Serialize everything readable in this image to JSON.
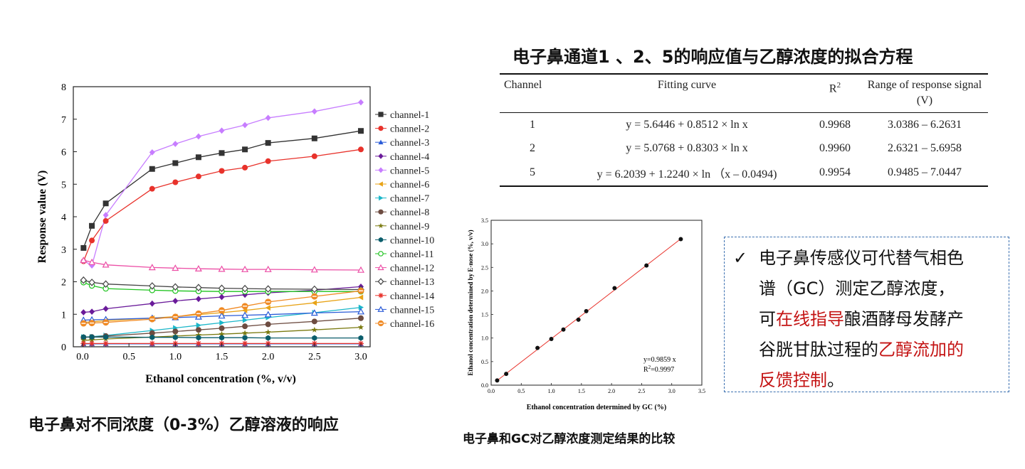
{
  "chart_data": [
    {
      "type": "scatter",
      "title": "",
      "xlabel": "Ethanol concentration (%, v/v)",
      "ylabel": "Response value (V)",
      "xlim": [
        -0.1,
        3.1
      ],
      "ylim": [
        0,
        8
      ],
      "xticks": [
        "0.0",
        "0.5",
        "1.0",
        "1.5",
        "2.0",
        "2.5",
        "3.0"
      ],
      "yticks": [
        "0",
        "1",
        "2",
        "3",
        "4",
        "5",
        "6",
        "7",
        "8"
      ],
      "x": [
        0.01,
        0.1,
        0.25,
        0.75,
        1.0,
        1.25,
        1.5,
        1.75,
        2.0,
        2.5,
        3.0
      ],
      "series": [
        {
          "name": "channel-1",
          "marker": "square-filled",
          "color": "#333333",
          "values": [
            3.04,
            3.72,
            4.41,
            5.47,
            5.65,
            5.83,
            5.96,
            6.07,
            6.27,
            6.41,
            6.64
          ]
        },
        {
          "name": "channel-2",
          "marker": "circle-filled",
          "color": "#e8322b",
          "values": [
            2.63,
            3.27,
            3.87,
            4.86,
            5.06,
            5.24,
            5.41,
            5.51,
            5.71,
            5.86,
            6.07
          ]
        },
        {
          "name": "channel-3",
          "marker": "triangle-filled",
          "color": "#2a5bd7",
          "values": [
            0.09,
            0.09,
            0.09,
            0.09,
            0.09,
            0.09,
            0.09,
            0.09,
            0.09,
            0.09,
            0.09
          ]
        },
        {
          "name": "channel-4",
          "marker": "diamond-filled",
          "color": "#6a1b9a",
          "values": [
            1.06,
            1.08,
            1.17,
            1.33,
            1.41,
            1.47,
            1.53,
            1.6,
            1.66,
            1.74,
            1.85
          ]
        },
        {
          "name": "channel-5",
          "marker": "diamond-filled",
          "color": "#c77dff",
          "values": [
            2.65,
            2.5,
            4.05,
            5.98,
            6.24,
            6.47,
            6.65,
            6.82,
            7.04,
            7.24,
            7.52
          ]
        },
        {
          "name": "channel-6",
          "marker": "triangle-left",
          "color": "#e8a317",
          "values": [
            0.75,
            0.77,
            0.8,
            0.88,
            0.93,
            0.99,
            1.05,
            1.12,
            1.2,
            1.35,
            1.52
          ]
        },
        {
          "name": "channel-7",
          "marker": "triangle-right",
          "color": "#1bb7c9",
          "values": [
            0.3,
            0.31,
            0.35,
            0.5,
            0.58,
            0.66,
            0.74,
            0.82,
            0.9,
            1.05,
            1.21
          ]
        },
        {
          "name": "channel-8",
          "marker": "circle-filled",
          "color": "#6d4c41",
          "values": [
            0.29,
            0.3,
            0.33,
            0.42,
            0.47,
            0.52,
            0.57,
            0.63,
            0.69,
            0.78,
            0.88
          ]
        },
        {
          "name": "channel-9",
          "marker": "star",
          "color": "#7a7a10",
          "values": [
            0.2,
            0.21,
            0.24,
            0.3,
            0.33,
            0.36,
            0.39,
            0.42,
            0.45,
            0.52,
            0.6
          ]
        },
        {
          "name": "channel-10",
          "marker": "hexagon",
          "color": "#0b5d6b",
          "values": [
            0.3,
            0.3,
            0.3,
            0.29,
            0.29,
            0.28,
            0.28,
            0.28,
            0.27,
            0.27,
            0.27
          ]
        },
        {
          "name": "channel-11",
          "marker": "circle-open",
          "color": "#1ec31e",
          "values": [
            1.98,
            1.88,
            1.79,
            1.74,
            1.72,
            1.71,
            1.7,
            1.7,
            1.7,
            1.7,
            1.7
          ]
        },
        {
          "name": "channel-12",
          "marker": "triangle-open",
          "color": "#ec4fa6",
          "values": [
            2.66,
            2.6,
            2.52,
            2.44,
            2.42,
            2.4,
            2.39,
            2.38,
            2.38,
            2.37,
            2.36
          ]
        },
        {
          "name": "channel-13",
          "marker": "diamond-open",
          "color": "#444444",
          "values": [
            2.05,
            1.98,
            1.93,
            1.87,
            1.84,
            1.82,
            1.8,
            1.79,
            1.78,
            1.77,
            1.76
          ]
        },
        {
          "name": "channel-14",
          "marker": "asterisk",
          "color": "#e8322b",
          "values": [
            0.1,
            0.1,
            0.1,
            0.1,
            0.1,
            0.1,
            0.1,
            0.1,
            0.1,
            0.1,
            0.1
          ]
        },
        {
          "name": "channel-15",
          "marker": "triangle-open",
          "color": "#2a5bd7",
          "values": [
            0.82,
            0.83,
            0.84,
            0.88,
            0.9,
            0.92,
            0.95,
            0.97,
            0.99,
            1.04,
            1.08
          ]
        },
        {
          "name": "channel-16",
          "marker": "circle-halffilled",
          "color": "#f08a24",
          "values": [
            0.72,
            0.73,
            0.75,
            0.85,
            0.92,
            1.02,
            1.12,
            1.25,
            1.38,
            1.55,
            1.72
          ]
        }
      ]
    },
    {
      "type": "scatter",
      "title": "",
      "xlabel": "Ethanol concentration determined by GC (%)",
      "ylabel": "Ethanol concentration determined by E-nose (%, v/v)",
      "xlim": [
        0,
        3.5
      ],
      "ylim": [
        0,
        3.5
      ],
      "xticks": [
        "0.0",
        "0.5",
        "1.0",
        "1.5",
        "2.0",
        "2.5",
        "3.0",
        "3.5"
      ],
      "yticks": [
        "0.0",
        "0.5",
        "1.0",
        "1.5",
        "2.0",
        "2.5",
        "3.0",
        "3.5"
      ],
      "points_x": [
        0.1,
        0.25,
        0.77,
        1.0,
        1.2,
        1.45,
        1.58,
        2.05,
        2.58,
        3.15
      ],
      "points_y": [
        0.1,
        0.24,
        0.79,
        0.98,
        1.18,
        1.39,
        1.57,
        2.06,
        2.54,
        3.1
      ],
      "fit": {
        "slope": 0.9859,
        "equation": "y=0.9859 x",
        "r2_label": "R",
        "r2_sup": "2",
        "r2_value": "=0.9997"
      }
    }
  ],
  "captions": {
    "left": "电子鼻对不同浓度（0-3%）乙醇溶液的响应",
    "bottom": "电子鼻和GC对乙醇浓度测定结果的比较"
  },
  "table": {
    "title": "电子鼻通道1 、2、5的响应值与乙醇浓度的拟合方程",
    "headers": {
      "channel": "Channel",
      "fitting": "Fitting curve",
      "r2": "R",
      "r2_sup": "2",
      "range_line1": "Range of response signal",
      "range_line2": "(V)"
    },
    "rows": [
      {
        "channel": "1",
        "fitting": "y = 5.6446 + 0.8512 × ln x",
        "r2": "0.9968",
        "range": "3.0386 – 6.2631"
      },
      {
        "channel": "2",
        "fitting": "y = 5.0768 + 0.8303 × ln x",
        "r2": "0.9960",
        "range": "2.6321 – 5.6958"
      },
      {
        "channel": "5",
        "fitting": "y = 6.2039 + 1.2240 × ln （x – 0.0494)",
        "r2": "0.9954",
        "range": "0.9485 – 7.0447"
      }
    ]
  },
  "note": {
    "check": "✓",
    "line1": "电子鼻传感仪可代替气相色",
    "line2": "谱（GC）测定乙醇浓度，",
    "line3_a": "可",
    "line3_red": "在线指导",
    "line3_b": "酿酒酵母发酵产",
    "line4_a": "谷胱甘肽过程的",
    "line4_red": "乙醇流加的",
    "line5_red": "反馈控制",
    "line5_b": "。"
  },
  "colors": {
    "accent_red": "#c41414",
    "box_border": "#3a6fb0",
    "fit_line": "#e8322b"
  }
}
